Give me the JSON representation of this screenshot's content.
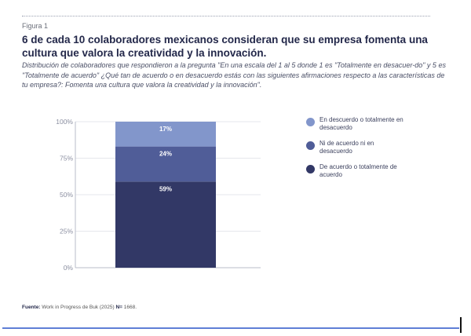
{
  "figure_label": "Figura 1",
  "title": "6 de cada 10 colaboradores mexicanos consideran que su empresa  fomenta una cultura que valora la creatividad y la innovación.",
  "subtitle": "Distribución de colaboradores que respondieron a la pregunta \"En una escala del 1 al 5 donde 1 es \"Totalmente en desacuer-do\" y 5 es \"Totalmente de acuerdo\" ¿Qué tan de acuerdo o en desacuerdo estás con las siguientes afirmaciones respecto a las características de tu empresa?: Fomenta una cultura que valora la creatividad y la innovación\".",
  "footer": {
    "source_label": "Fuente:",
    "source_text": " Work in Progress de Buk (2025) ",
    "n_label": "N=",
    "n_value": " 1668."
  },
  "chart_data": {
    "type": "bar",
    "stacked": true,
    "ylim": [
      0,
      100
    ],
    "yticks": [
      "0%",
      "25%",
      "50%",
      "75%",
      "100%"
    ],
    "grid": true,
    "legend_position": "right",
    "series": [
      {
        "name": "De acuerdo o totalmente de acuerdo",
        "value": 59,
        "label": "59%",
        "color": "#323866"
      },
      {
        "name": "Ni de acuerdo ni en desacuerdo",
        "value": 24,
        "label": "24%",
        "color": "#505d98"
      },
      {
        "name": "En descuerdo o totalmente en desacuerdo",
        "value": 17,
        "label": "17%",
        "color": "#8296cb"
      }
    ]
  }
}
